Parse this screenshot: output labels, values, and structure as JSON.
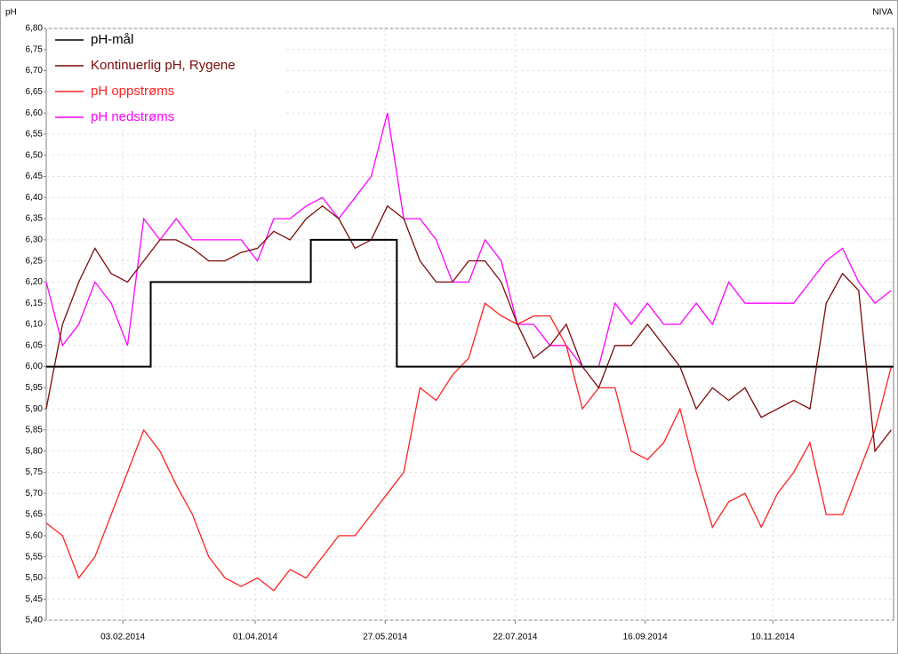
{
  "chart_data": {
    "type": "line",
    "y_label": "pH",
    "corner_text": "NIVA",
    "grid": true,
    "legend": "top-left",
    "xlim": [
      "2014-01-01",
      "2015-01-01"
    ],
    "xticks": [
      {
        "value": "2014-02-03",
        "label": "03.02.2014"
      },
      {
        "value": "2014-04-01",
        "label": "01.04.2014"
      },
      {
        "value": "2014-05-27",
        "label": "27.05.2014"
      },
      {
        "value": "2014-07-22",
        "label": "22.07.2014"
      },
      {
        "value": "2014-09-16",
        "label": "16.09.2014"
      },
      {
        "value": "2014-11-10",
        "label": "10.11.2014"
      }
    ],
    "ylim": [
      5.4,
      6.8
    ],
    "yticks": [
      {
        "value": 5.4,
        "label": "5,40"
      },
      {
        "value": 5.45,
        "label": "5,45"
      },
      {
        "value": 5.5,
        "label": "5,50"
      },
      {
        "value": 5.55,
        "label": "5,55"
      },
      {
        "value": 5.6,
        "label": "5,60"
      },
      {
        "value": 5.65,
        "label": "5,65"
      },
      {
        "value": 5.7,
        "label": "5,70"
      },
      {
        "value": 5.75,
        "label": "5,75"
      },
      {
        "value": 5.8,
        "label": "5,80"
      },
      {
        "value": 5.85,
        "label": "5,85"
      },
      {
        "value": 5.9,
        "label": "5,90"
      },
      {
        "value": 5.95,
        "label": "5,95"
      },
      {
        "value": 6.0,
        "label": "6,00"
      },
      {
        "value": 6.05,
        "label": "6,05"
      },
      {
        "value": 6.1,
        "label": "6,10"
      },
      {
        "value": 6.15,
        "label": "6,15"
      },
      {
        "value": 6.2,
        "label": "6,20"
      },
      {
        "value": 6.25,
        "label": "6,25"
      },
      {
        "value": 6.3,
        "label": "6,30"
      },
      {
        "value": 6.35,
        "label": "6,35"
      },
      {
        "value": 6.4,
        "label": "6,40"
      },
      {
        "value": 6.45,
        "label": "6,45"
      },
      {
        "value": 6.5,
        "label": "6,50"
      },
      {
        "value": 6.55,
        "label": "6,55"
      },
      {
        "value": 6.6,
        "label": "6,60"
      },
      {
        "value": 6.65,
        "label": "6,65"
      },
      {
        "value": 6.7,
        "label": "6,70"
      },
      {
        "value": 6.75,
        "label": "6,75"
      },
      {
        "value": 6.8,
        "label": "6,80"
      }
    ],
    "x": [
      "2014-01-01",
      "2014-01-08",
      "2014-01-15",
      "2014-01-22",
      "2014-01-29",
      "2014-02-05",
      "2014-02-12",
      "2014-02-19",
      "2014-02-26",
      "2014-03-05",
      "2014-03-12",
      "2014-03-19",
      "2014-03-26",
      "2014-04-02",
      "2014-04-09",
      "2014-04-16",
      "2014-04-23",
      "2014-04-30",
      "2014-05-07",
      "2014-05-14",
      "2014-05-21",
      "2014-05-28",
      "2014-06-04",
      "2014-06-11",
      "2014-06-18",
      "2014-06-25",
      "2014-07-02",
      "2014-07-09",
      "2014-07-16",
      "2014-07-23",
      "2014-07-30",
      "2014-08-06",
      "2014-08-13",
      "2014-08-20",
      "2014-08-27",
      "2014-09-03",
      "2014-09-10",
      "2014-09-17",
      "2014-09-24",
      "2014-10-01",
      "2014-10-08",
      "2014-10-15",
      "2014-10-22",
      "2014-10-29",
      "2014-11-05",
      "2014-11-12",
      "2014-11-19",
      "2014-11-26",
      "2014-12-03",
      "2014-12-10",
      "2014-12-17",
      "2014-12-24",
      "2014-12-31"
    ],
    "series": [
      {
        "name": "pH-mål",
        "color": "#000000",
        "x": [
          "2014-01-01",
          "2014-02-15",
          "2014-02-15",
          "2014-04-25",
          "2014-04-25",
          "2014-06-01",
          "2014-06-01",
          "2015-01-01"
        ],
        "values": [
          6.0,
          6.0,
          6.2,
          6.2,
          6.3,
          6.3,
          6.0,
          6.0
        ]
      },
      {
        "name": "Kontinuerlig pH, Rygene",
        "color": "#7b0a0a",
        "values": [
          5.9,
          6.1,
          6.2,
          6.28,
          6.22,
          6.2,
          6.25,
          6.3,
          6.3,
          6.28,
          6.25,
          6.25,
          6.27,
          6.28,
          6.32,
          6.3,
          6.35,
          6.38,
          6.35,
          6.28,
          6.3,
          6.38,
          6.35,
          6.25,
          6.2,
          6.2,
          6.25,
          6.25,
          6.2,
          6.1,
          6.02,
          6.05,
          6.1,
          6.0,
          5.95,
          6.05,
          6.05,
          6.1,
          6.05,
          6.0,
          5.9,
          5.95,
          5.92,
          5.95,
          5.88,
          5.9,
          5.92,
          5.9,
          6.15,
          6.22,
          6.18,
          5.8,
          5.85
        ]
      },
      {
        "name": "pH oppstrøms",
        "color": "#ff2020",
        "values": [
          5.63,
          5.6,
          5.5,
          5.55,
          5.65,
          5.75,
          5.85,
          5.8,
          5.72,
          5.65,
          5.55,
          5.5,
          5.48,
          5.5,
          5.47,
          5.52,
          5.5,
          5.55,
          5.6,
          5.6,
          5.65,
          5.7,
          5.75,
          5.95,
          5.92,
          5.98,
          6.02,
          6.15,
          6.12,
          6.1,
          6.12,
          6.12,
          6.05,
          5.9,
          5.95,
          5.95,
          5.8,
          5.78,
          5.82,
          5.9,
          5.75,
          5.62,
          5.68,
          5.7,
          5.62,
          5.7,
          5.75,
          5.82,
          5.65,
          5.65,
          5.75,
          5.85,
          6.0
        ]
      },
      {
        "name": "pH nedstrøms",
        "color": "#ff00ff",
        "values": [
          6.2,
          6.05,
          6.1,
          6.2,
          6.15,
          6.05,
          6.35,
          6.3,
          6.35,
          6.3,
          6.3,
          6.3,
          6.3,
          6.25,
          6.35,
          6.35,
          6.38,
          6.4,
          6.35,
          6.4,
          6.45,
          6.6,
          6.35,
          6.35,
          6.3,
          6.2,
          6.2,
          6.3,
          6.25,
          6.1,
          6.1,
          6.05,
          6.05,
          6.0,
          6.0,
          6.15,
          6.1,
          6.15,
          6.1,
          6.1,
          6.15,
          6.1,
          6.2,
          6.15,
          6.15,
          6.15,
          6.15,
          6.2,
          6.25,
          6.28,
          6.2,
          6.15,
          6.18
        ]
      }
    ]
  }
}
